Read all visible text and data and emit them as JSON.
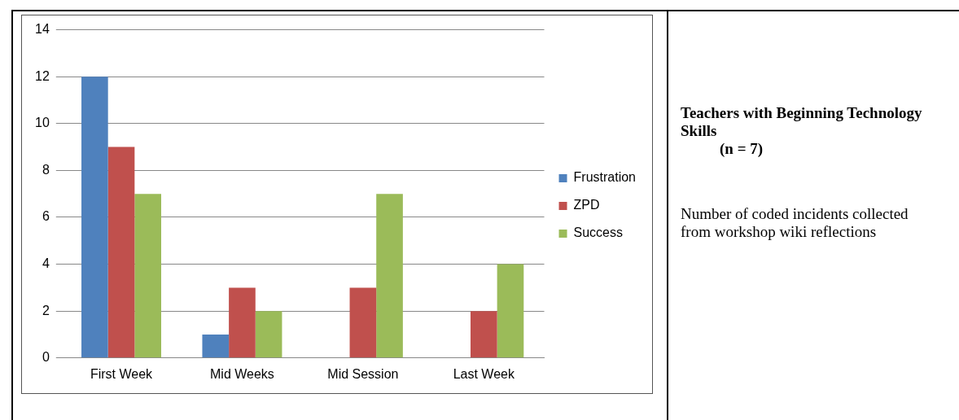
{
  "chart_data": {
    "type": "bar",
    "title": "Teachers with Beginning Technology Skills\n(n = 7)",
    "annotations": [
      "Number of coded incidents collected from workshop wiki reflections"
    ],
    "categories": [
      "First Week",
      "Mid Weeks",
      "Mid Session",
      "Last Week"
    ],
    "series": [
      {
        "name": "Frustration",
        "color": "#4f81bd",
        "values": [
          12,
          1,
          0,
          0
        ]
      },
      {
        "name": "ZPD",
        "color": "#c0504d",
        "values": [
          9,
          3,
          3,
          2
        ]
      },
      {
        "name": "Success",
        "color": "#9bbb59",
        "values": [
          7,
          2,
          7,
          4
        ]
      }
    ],
    "ylim": [
      0,
      14
    ],
    "yticks": [
      0,
      2,
      4,
      6,
      8,
      10,
      12,
      14
    ],
    "grid": "y",
    "legend": "right"
  }
}
